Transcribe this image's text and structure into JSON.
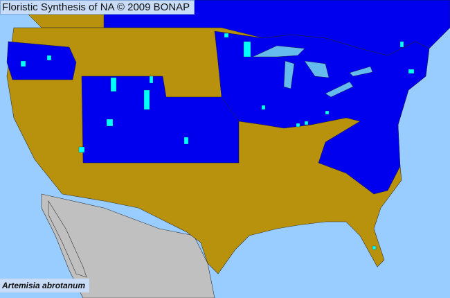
{
  "header": {
    "title": "Floristic Synthesis of NA © 2009 BONAP"
  },
  "species_label": "Artemisia abrotanum",
  "legend_colors": {
    "ocean": "#99ccff",
    "present_native_region": "#0000ee",
    "absent_region": "#b8920c",
    "county_present": "#00ffff",
    "outside_range": "#c0c0c0",
    "lakes": "#66bbee"
  }
}
